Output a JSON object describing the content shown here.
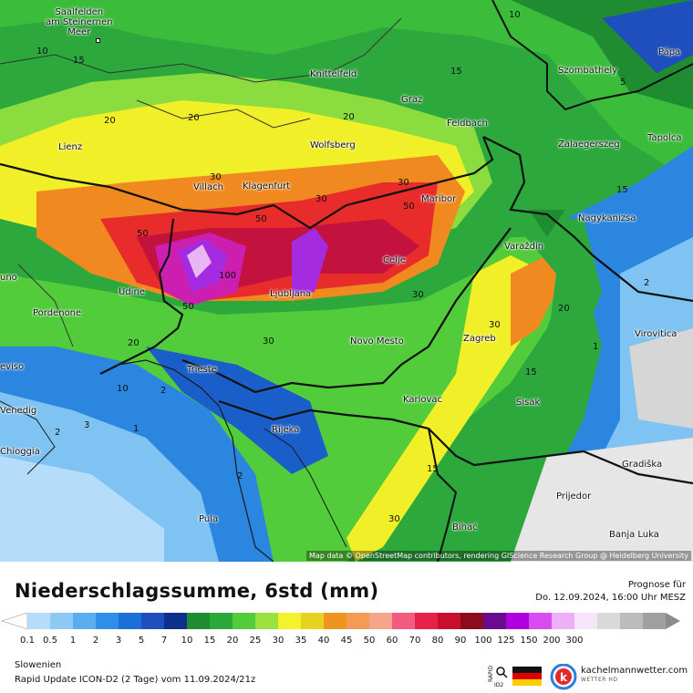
{
  "map": {
    "region_colors": {
      "very_low": "#7fc3f2",
      "low": "#2a86de",
      "low2": "#1a5fc9",
      "mid_green": "#1f9a3a",
      "green": "#38c23b",
      "lightgreen": "#8bdc3e",
      "yellow": "#f1ef27",
      "orange": "#f08a20",
      "red": "#e82b2b",
      "crimson": "#c2123d",
      "magenta": "#cc1fb0",
      "violet": "#a52be0",
      "lavender": "#e9b6f4"
    },
    "cities": [
      {
        "name": "Saalfelden\nam Steinernen\nMeer"
      },
      {
        "name": "Knittelfeld"
      },
      {
        "name": "Szombathely"
      },
      {
        "name": "Pápa"
      },
      {
        "name": "Graz"
      },
      {
        "name": "Feldbach"
      },
      {
        "name": "Lienz"
      },
      {
        "name": "Wolfsberg"
      },
      {
        "name": "Zalaegerszeg"
      },
      {
        "name": "Tapolca"
      },
      {
        "name": "Villach"
      },
      {
        "name": "Klagenfurt"
      },
      {
        "name": "Maribor"
      },
      {
        "name": "Nagykanizsa"
      },
      {
        "name": "Varaždin"
      },
      {
        "name": "Celje"
      },
      {
        "name": "uno"
      },
      {
        "name": "Udine"
      },
      {
        "name": "Ljubljana"
      },
      {
        "name": "Pordenone"
      },
      {
        "name": "Novo Mesto"
      },
      {
        "name": "Zagreb"
      },
      {
        "name": "Virovitica"
      },
      {
        "name": "eviso"
      },
      {
        "name": "Trieste"
      },
      {
        "name": "Venedig"
      },
      {
        "name": "Karlovac"
      },
      {
        "name": "Sisak"
      },
      {
        "name": "Rijeka"
      },
      {
        "name": "Chioggia"
      },
      {
        "name": "Gradiška"
      },
      {
        "name": "Prijedor"
      },
      {
        "name": "Pula"
      },
      {
        "name": "Bihać"
      },
      {
        "name": "Banja Luka"
      }
    ],
    "isolines": [
      "10",
      "15",
      "20",
      "30",
      "50",
      "100",
      "2",
      "3",
      "1",
      "5"
    ],
    "attribution": "Map data © OpenStreetMap contributors, rendering GIScience Research Group @ Heidelberg University"
  },
  "legend": {
    "title": "Niederschlagssumme, 6std (mm)",
    "forecast_label": "Prognose für",
    "forecast_date": "Do. 12.09.2024, 16:00 Uhr MESZ",
    "scale": [
      {
        "label": "0.1",
        "color": "#b5ddfa"
      },
      {
        "label": "0.5",
        "color": "#8ccaf5"
      },
      {
        "label": "1",
        "color": "#5aaef0"
      },
      {
        "label": "2",
        "color": "#2f8ee8"
      },
      {
        "label": "3",
        "color": "#1a6fd9"
      },
      {
        "label": "5",
        "color": "#1e4fbd"
      },
      {
        "label": "7",
        "color": "#0f2f8c"
      },
      {
        "label": "10",
        "color": "#1f8c32"
      },
      {
        "label": "15",
        "color": "#2aa83a"
      },
      {
        "label": "20",
        "color": "#52cc3a"
      },
      {
        "label": "25",
        "color": "#9be03c"
      },
      {
        "label": "30",
        "color": "#f4f22a"
      },
      {
        "label": "35",
        "color": "#e6d21f"
      },
      {
        "label": "40",
        "color": "#f0941f"
      },
      {
        "label": "45",
        "color": "#f39a55"
      },
      {
        "label": "50",
        "color": "#f4a58a"
      },
      {
        "label": "60",
        "color": "#f25a80"
      },
      {
        "label": "70",
        "color": "#e8204a"
      },
      {
        "label": "80",
        "color": "#c8102e"
      },
      {
        "label": "90",
        "color": "#8c0b1c"
      },
      {
        "label": "100",
        "color": "#6a0a8c"
      },
      {
        "label": "125",
        "color": "#b000e0"
      },
      {
        "label": "150",
        "color": "#d84cf2"
      },
      {
        "label": "200",
        "color": "#ecb0f6"
      },
      {
        "label": "300",
        "color": "#f7e6fb"
      },
      {
        "label": "",
        "color": "#d9d9d9"
      },
      {
        "label": "",
        "color": "#bcbcbc"
      },
      {
        "label": "",
        "color": "#a0a0a0"
      }
    ],
    "region": "Slowenien",
    "model": "Rapid Update ICON-D2 (2 Tage) vom 11.09.2024/21z",
    "brand": "kachelmannwetter.com",
    "brand_sub": "WETTER HD",
    "rapid_label": "RAPID ID2"
  }
}
